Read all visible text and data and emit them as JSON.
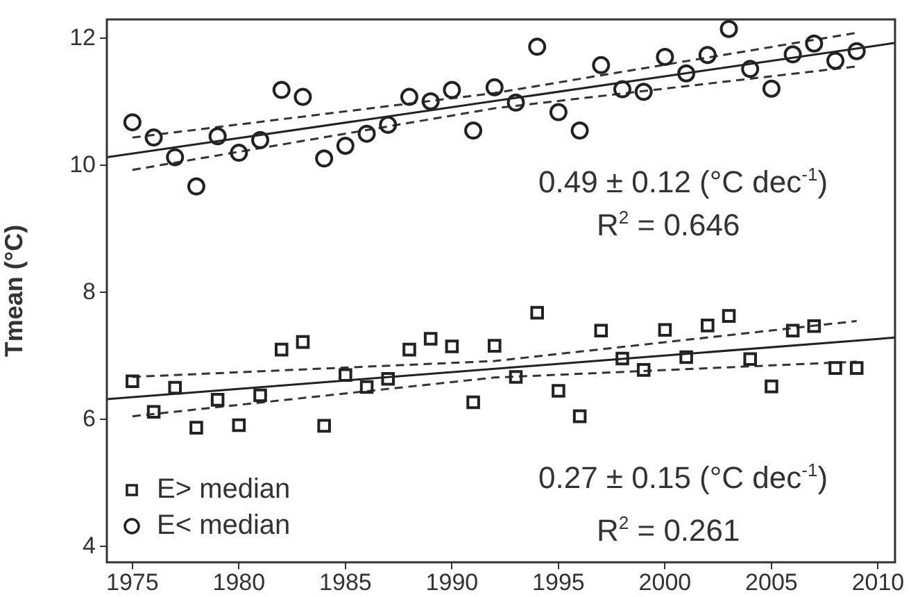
{
  "chart_data": {
    "type": "scatter",
    "ylabel": "Tmean (°C)",
    "x": [
      1975,
      1976,
      1977,
      1978,
      1979,
      1980,
      1981,
      1982,
      1983,
      1984,
      1985,
      1986,
      1987,
      1988,
      1989,
      1990,
      1991,
      1992,
      1993,
      1994,
      1995,
      1996,
      1997,
      1998,
      1999,
      2000,
      2001,
      2002,
      2003,
      2004,
      2005,
      2006,
      2007,
      2008,
      2009
    ],
    "series": [
      {
        "name": "E> median",
        "marker": "square",
        "color": "#222222",
        "values": [
          6.6,
          6.12,
          6.5,
          5.87,
          6.31,
          5.91,
          6.38,
          7.1,
          7.22,
          5.9,
          6.7,
          6.51,
          6.64,
          7.1,
          7.27,
          7.15,
          6.27,
          7.16,
          6.67,
          7.68,
          6.45,
          6.05,
          7.4,
          6.96,
          6.78,
          7.41,
          6.98,
          7.48,
          7.63,
          6.95,
          6.52,
          7.4,
          7.47,
          6.81,
          6.81
        ]
      },
      {
        "name": "E< median",
        "marker": "circle",
        "color": "#222222",
        "values": [
          10.68,
          10.44,
          10.13,
          9.67,
          10.46,
          10.2,
          10.4,
          11.19,
          11.08,
          10.11,
          10.31,
          10.5,
          10.64,
          11.08,
          11.01,
          11.19,
          10.55,
          11.23,
          10.99,
          11.87,
          10.84,
          10.55,
          11.58,
          11.2,
          11.16,
          11.71,
          11.45,
          11.74,
          12.15,
          11.52,
          11.21,
          11.75,
          11.92,
          11.65,
          11.8
        ]
      },
      {
        "type": "line",
        "marker": "none",
        "line_style": "solid",
        "color": "#222222",
        "x": [
          1973.8,
          2010.8
        ],
        "values": [
          10.13,
          11.93
        ]
      },
      {
        "type": "line",
        "marker": "none",
        "line_style": "dashed",
        "color": "#333333",
        "x": [
          1975,
          1992,
          2009
        ],
        "values": [
          10.44,
          11.14,
          12.09
        ]
      },
      {
        "type": "line",
        "marker": "none",
        "line_style": "dashed",
        "color": "#333333",
        "x": [
          1975,
          1992,
          2009
        ],
        "values": [
          9.93,
          10.9,
          11.56
        ]
      },
      {
        "type": "line",
        "marker": "none",
        "line_style": "solid",
        "color": "#222222",
        "x": [
          1973.8,
          2010.8
        ],
        "values": [
          6.32,
          7.29
        ]
      },
      {
        "type": "line",
        "marker": "none",
        "line_style": "dashed",
        "color": "#333333",
        "x": [
          1975,
          1992,
          2009
        ],
        "values": [
          6.67,
          6.92,
          7.55
        ]
      },
      {
        "type": "line",
        "marker": "none",
        "line_style": "dashed",
        "color": "#333333",
        "x": [
          1975,
          1992,
          2009
        ],
        "values": [
          6.05,
          6.66,
          6.91
        ]
      }
    ],
    "xlim": [
      1973.8,
      2010.8
    ],
    "xticks": [
      1975,
      1980,
      1985,
      1990,
      1995,
      2000,
      2005,
      2010
    ],
    "ylim": [
      3.75,
      12.3
    ],
    "yticks": [
      4,
      6,
      8,
      10,
      12
    ],
    "grid": false,
    "legend": "bottom left",
    "annotations": [
      "0.49 ± 0.12 (°C dec$^{-1}$)",
      "R$^{2}$ = 0.646",
      "0.27 ± 0.15 (°C dec$^{-1}$)",
      "R$^{2}$ = 0.261"
    ]
  }
}
